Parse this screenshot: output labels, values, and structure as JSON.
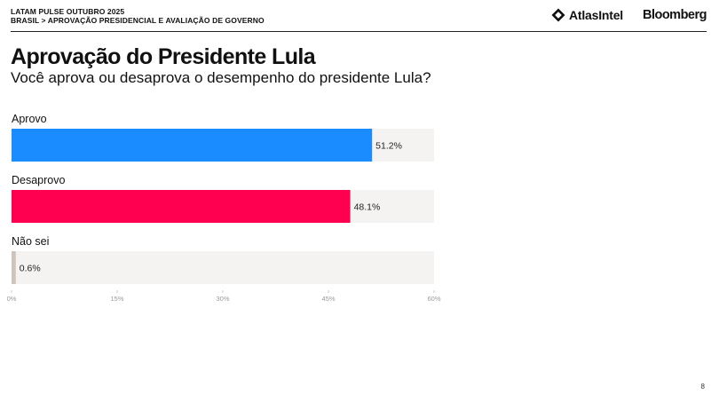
{
  "header": {
    "survey_name": "LATAM PULSE OUTUBRO 2025",
    "breadcrumb": "BRASIL > APROVAÇÃO PRESIDENCIAL E AVALIAÇÃO DE GOVERNO",
    "logo_atlas": "AtlasIntel",
    "logo_bloomberg": "Bloomberg"
  },
  "title": "Aprovação do Presidente Lula",
  "subtitle": "Você aprova ou desaprova o desempenho do presidente Lula?",
  "page_number": "8",
  "chart_data": {
    "type": "bar",
    "orientation": "horizontal",
    "categories": [
      "Aprovo",
      "Desaprovo",
      "Não sei"
    ],
    "values": [
      51.2,
      48.1,
      0.6
    ],
    "value_labels": [
      "51.2%",
      "48.1%",
      "0.6%"
    ],
    "colors": [
      "#1a8cff",
      "#ff0050",
      "#cfc3bd"
    ],
    "track_color": "#f4f3f1",
    "xlim": [
      0,
      60
    ],
    "x_ticks": [
      0,
      15,
      30,
      45,
      60
    ],
    "x_tick_labels": [
      "0%",
      "15%",
      "30%",
      "45%",
      "60%"
    ],
    "grid": false
  }
}
